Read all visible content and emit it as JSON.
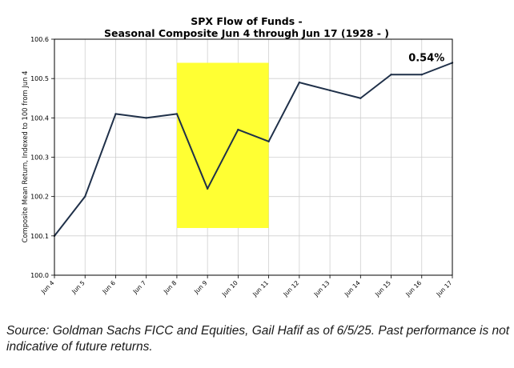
{
  "chart_data": {
    "type": "line",
    "title": "SPX Flow of Funds -",
    "subtitle": "Seasonal Composite Jun 4 through Jun 17 (1928 - )",
    "xlabel": "",
    "ylabel": "Composite Mean Return, Indexed to 100 from Jun 4",
    "categories": [
      "Jun 4",
      "Jun 5",
      "Jun 6",
      "Jun 7",
      "Jun 8",
      "Jun 9",
      "Jun 10",
      "Jun 11",
      "Jun 12",
      "Jun 13",
      "Jun 14",
      "Jun 15",
      "Jun 16",
      "Jun 17"
    ],
    "series": [
      {
        "values": [
          100.1,
          100.2,
          100.41,
          100.4,
          100.41,
          100.22,
          100.37,
          100.34,
          100.49,
          100.47,
          100.45,
          100.51,
          100.51,
          100.54
        ]
      }
    ],
    "ylim": [
      100.0,
      100.6
    ],
    "yticks": [
      "100.0",
      "100.1",
      "100.2",
      "100.3",
      "100.4",
      "100.5",
      "100.6"
    ],
    "grid": true,
    "highlight": {
      "x_from": "Jun 8",
      "x_to": "Jun 11",
      "y_from": 100.12,
      "y_to": 100.54,
      "color": "#ffff33"
    },
    "end_label": "0.54%",
    "line_color": "#1f3049"
  },
  "source_note": "Source: Goldman Sachs FICC and Equities, Gail Hafif as of 6/5/25. Past performance is not indicative of future returns."
}
